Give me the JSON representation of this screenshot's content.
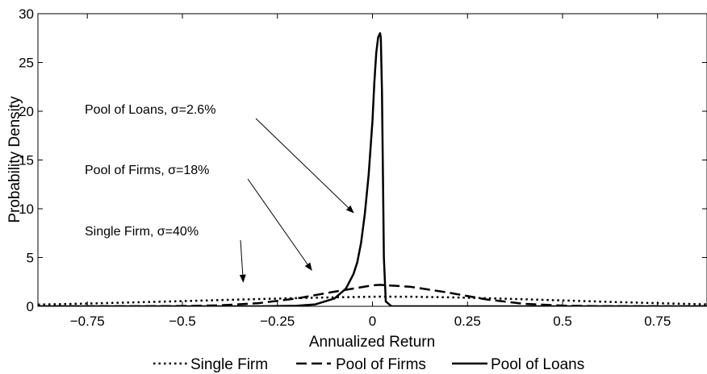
{
  "chart_data": {
    "type": "line",
    "title": "",
    "xlabel": "Annualized Return",
    "ylabel": "Probability Density",
    "xlim": [
      -0.88,
      0.88
    ],
    "ylim": [
      0,
      30
    ],
    "x_ticks": [
      -0.75,
      -0.5,
      -0.25,
      0,
      0.25,
      0.5,
      0.75
    ],
    "x_tick_labels": [
      "−0.75",
      "−0.5",
      "−0.25",
      "0",
      "0.25",
      "0.5",
      "0.75"
    ],
    "y_ticks": [
      0,
      5,
      10,
      15,
      20,
      25,
      30
    ],
    "y_tick_labels": [
      "0",
      "5",
      "10",
      "15",
      "20",
      "25",
      "30"
    ],
    "grid": false,
    "legend_position": "bottom",
    "series": [
      {
        "name": "Single Firm",
        "style": "dotted",
        "color": "#000000",
        "x": [
          -0.88,
          -0.8,
          -0.7,
          -0.6,
          -0.5,
          -0.4,
          -0.3,
          -0.2,
          -0.1,
          0,
          0.02,
          0.1,
          0.2,
          0.3,
          0.4,
          0.5,
          0.6,
          0.7,
          0.8,
          0.88
        ],
        "y": [
          0.18,
          0.24,
          0.33,
          0.43,
          0.53,
          0.64,
          0.74,
          0.84,
          0.92,
          0.98,
          0.99,
          0.98,
          0.92,
          0.83,
          0.72,
          0.6,
          0.48,
          0.37,
          0.27,
          0.2
        ]
      },
      {
        "name": "Pool of Firms",
        "style": "dashed",
        "color": "#000000",
        "x": [
          -0.88,
          -0.6,
          -0.5,
          -0.4,
          -0.3,
          -0.2,
          -0.1,
          0,
          0.02,
          0.1,
          0.2,
          0.3,
          0.4,
          0.5,
          0.6,
          0.88
        ],
        "y": [
          0,
          0.01,
          0.03,
          0.1,
          0.32,
          0.8,
          1.5,
          2.15,
          2.2,
          2.0,
          1.4,
          0.7,
          0.25,
          0.07,
          0.01,
          0
        ],
        "label": "Pool of Firms, σ=18%"
      },
      {
        "name": "Pool of Loans",
        "style": "solid",
        "color": "#000000",
        "x": [
          -0.88,
          -0.3,
          -0.2,
          -0.15,
          -0.1,
          -0.07,
          -0.05,
          -0.04,
          -0.03,
          -0.02,
          -0.01,
          0,
          0.005,
          0.01,
          0.015,
          0.02,
          0.022,
          0.025,
          0.028,
          0.03,
          0.035,
          0.05,
          0.1,
          0.88
        ],
        "y": [
          0,
          0,
          0.05,
          0.2,
          0.8,
          1.8,
          3.3,
          4.5,
          6.5,
          9.5,
          13.5,
          19,
          23,
          26,
          27.6,
          28,
          27.5,
          22,
          12,
          5,
          0.5,
          0,
          0,
          0
        ],
        "label": "Pool of Loans, σ=2.6%"
      }
    ],
    "annotations": [
      {
        "text": "Pool of Loans, σ=2.6%",
        "target": [
          -0.05,
          9.6
        ]
      },
      {
        "text": "Pool of Firms, σ=18%",
        "target": [
          -0.16,
          3.7
        ]
      },
      {
        "text": "Single Firm, σ=40%",
        "target": [
          -0.34,
          2.5
        ]
      }
    ]
  }
}
